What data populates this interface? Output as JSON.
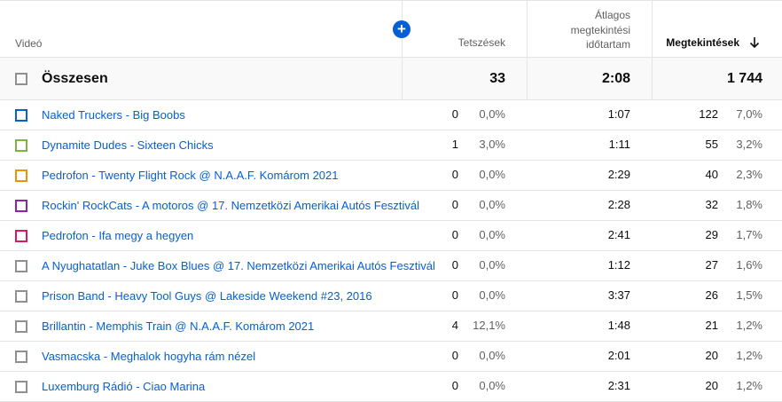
{
  "header": {
    "video_label": "Videó",
    "likes_label": "Tetszések",
    "avg_watch_line1": "Átlagos",
    "avg_watch_line2": "megtekintési",
    "avg_watch_line3": "időtartam",
    "views_label": "Megtekintések",
    "add_icon": "plus-circle-icon",
    "sort_icon": "arrow-down-icon",
    "accent_color": "#065fd4"
  },
  "total": {
    "label": "Összesen",
    "likes": "33",
    "avg_watch": "2:08",
    "views": "1 744"
  },
  "rows": [
    {
      "color": "#065fd4",
      "title": "Naked Truckers - Big Boobs",
      "likes": "0",
      "likes_pct": "0,0%",
      "avg": "1:07",
      "views": "122",
      "views_pct": "7,0%"
    },
    {
      "color": "#7cb342",
      "title": "Dynamite Dudes - Sixteen Chicks",
      "likes": "1",
      "likes_pct": "3,0%",
      "avg": "1:11",
      "views": "55",
      "views_pct": "3,2%"
    },
    {
      "color": "#f09300",
      "title": "Pedrofon - Twenty Flight Rock @ N.A.A.F. Komárom 2021",
      "likes": "0",
      "likes_pct": "0,0%",
      "avg": "2:29",
      "views": "40",
      "views_pct": "2,3%"
    },
    {
      "color": "#8e24aa",
      "title": "Rockin' RockCats - A motoros @ 17. Nemzetközi Amerikai Autós Fesztivál",
      "likes": "0",
      "likes_pct": "0,0%",
      "avg": "2:28",
      "views": "32",
      "views_pct": "1,8%"
    },
    {
      "color": "#d81b60",
      "title": "Pedrofon - Ifa megy a hegyen",
      "likes": "0",
      "likes_pct": "0,0%",
      "avg": "2:41",
      "views": "29",
      "views_pct": "1,7%"
    },
    {
      "color": "#909090",
      "title": "A Nyughatatlan - Juke Box Blues @ 17. Nemzetközi Amerikai Autós Fesztivál",
      "likes": "0",
      "likes_pct": "0,0%",
      "avg": "1:12",
      "views": "27",
      "views_pct": "1,6%"
    },
    {
      "color": "#909090",
      "title": "Prison Band - Heavy Tool Guys @ Lakeside Weekend #23, 2016",
      "likes": "0",
      "likes_pct": "0,0%",
      "avg": "3:37",
      "views": "26",
      "views_pct": "1,5%"
    },
    {
      "color": "#909090",
      "title": "Brillantin - Memphis Train @ N.A.A.F. Komárom 2021",
      "likes": "4",
      "likes_pct": "12,1%",
      "avg": "1:48",
      "views": "21",
      "views_pct": "1,2%"
    },
    {
      "color": "#909090",
      "title": "Vasmacska - Meghalok hogyha rám nézel",
      "likes": "0",
      "likes_pct": "0,0%",
      "avg": "2:01",
      "views": "20",
      "views_pct": "1,2%"
    },
    {
      "color": "#909090",
      "title": "Luxemburg Rádió - Ciao Marina",
      "likes": "0",
      "likes_pct": "0,0%",
      "avg": "2:31",
      "views": "20",
      "views_pct": "1,2%"
    }
  ]
}
